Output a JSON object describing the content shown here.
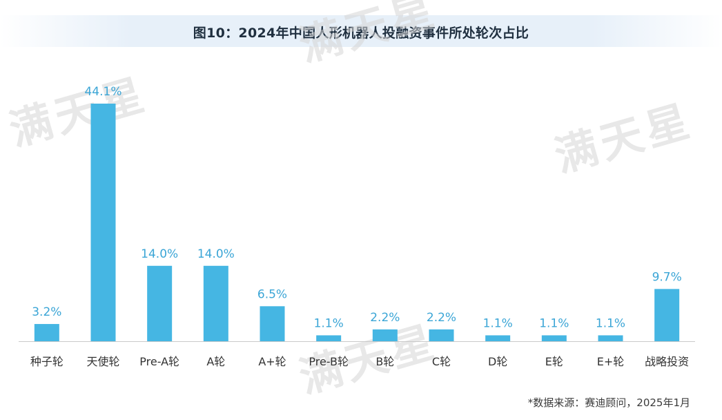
{
  "title": "图10：2024年中国人形机器人投融资事件所处轮次占比",
  "source": "*数据来源：赛迪顾问，2025年1月",
  "watermark": "满天星",
  "colors": {
    "bar": "#45b6e3",
    "label": "#3aa5d6",
    "axis": "#c9c9c9",
    "tick": "#333333"
  },
  "chart_data": {
    "type": "bar",
    "categories": [
      "种子轮",
      "天使轮",
      "Pre-A轮",
      "A轮",
      "A+轮",
      "Pre-B轮",
      "B轮",
      "C轮",
      "D轮",
      "E轮",
      "E+轮",
      "战略投资"
    ],
    "values": [
      3.2,
      44.1,
      14.0,
      14.0,
      6.5,
      1.1,
      2.2,
      2.2,
      1.1,
      1.1,
      1.1,
      9.7
    ],
    "value_labels": [
      "3.2%",
      "44.1%",
      "14.0%",
      "14.0%",
      "6.5%",
      "1.1%",
      "2.2%",
      "2.2%",
      "1.1%",
      "1.1%",
      "1.1%",
      "9.7%"
    ],
    "unit": "%",
    "ylim": [
      0,
      45
    ],
    "grid": false,
    "legend": "none"
  }
}
